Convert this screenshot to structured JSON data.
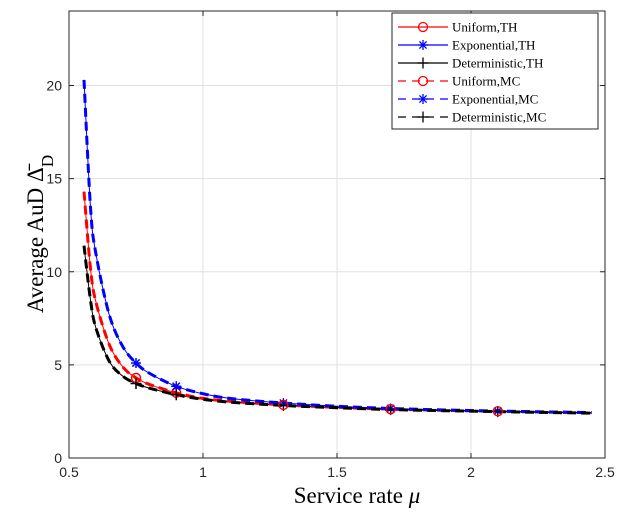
{
  "chart_data": {
    "type": "line",
    "title": "",
    "xlabel": "Service rate μ",
    "ylabel_text": "Average AuD",
    "ylabel_symbol": "Δ̄",
    "ylabel_subscript": "D",
    "xlim": [
      0.5,
      2.5
    ],
    "ylim": [
      0,
      24
    ],
    "xticks": [
      0.5,
      1,
      1.5,
      2,
      2.5
    ],
    "xtick_labels": [
      "0.5",
      "1",
      "1.5",
      "2",
      "2.5"
    ],
    "yticks": [
      0,
      5,
      10,
      15,
      20
    ],
    "ytick_labels": [
      "0",
      "5",
      "10",
      "15",
      "20"
    ],
    "grid": true,
    "legend_position": "top-right",
    "series": [
      {
        "name": "Uniform,TH",
        "color": "#ff0000",
        "linestyle": "solid",
        "marker": "circle",
        "x": [
          0.556,
          0.58,
          0.6,
          0.65,
          0.7,
          0.75,
          0.8,
          0.9,
          1.0,
          1.1,
          1.3,
          1.5,
          1.7,
          1.9,
          2.1,
          2.3,
          2.45
        ],
        "y": [
          14.3,
          10.2,
          8.4,
          6.1,
          4.9,
          4.3,
          3.95,
          3.5,
          3.2,
          3.05,
          2.85,
          2.72,
          2.62,
          2.56,
          2.51,
          2.46,
          2.43
        ],
        "marker_x": [
          0.75,
          0.9,
          1.3,
          1.7,
          2.1
        ]
      },
      {
        "name": "Exponential,TH",
        "color": "#0000ff",
        "linestyle": "solid",
        "marker": "asterisk",
        "x": [
          0.556,
          0.58,
          0.6,
          0.65,
          0.7,
          0.75,
          0.8,
          0.9,
          1.0,
          1.1,
          1.3,
          1.5,
          1.7,
          1.9,
          2.1,
          2.3,
          2.45
        ],
        "y": [
          20.3,
          13.5,
          11.0,
          7.7,
          6.0,
          5.1,
          4.55,
          3.85,
          3.45,
          3.2,
          2.95,
          2.78,
          2.66,
          2.58,
          2.52,
          2.47,
          2.44
        ],
        "marker_x": [
          0.75,
          0.9,
          1.3,
          1.7,
          2.1
        ]
      },
      {
        "name": "Deterministic,TH",
        "color": "#000000",
        "linestyle": "solid",
        "marker": "plus",
        "x": [
          0.556,
          0.58,
          0.6,
          0.65,
          0.7,
          0.75,
          0.8,
          0.9,
          1.0,
          1.1,
          1.3,
          1.5,
          1.7,
          1.9,
          2.1,
          2.3,
          2.45
        ],
        "y": [
          11.4,
          8.5,
          7.0,
          5.2,
          4.4,
          4.0,
          3.75,
          3.4,
          3.15,
          3.0,
          2.82,
          2.7,
          2.6,
          2.54,
          2.49,
          2.44,
          2.41
        ],
        "marker_x": [
          0.75,
          0.9,
          1.3,
          1.7,
          2.1
        ]
      },
      {
        "name": "Uniform,MC",
        "color": "#ff0000",
        "linestyle": "dashed",
        "marker": "circle",
        "x": [
          0.556,
          0.58,
          0.6,
          0.65,
          0.7,
          0.75,
          0.8,
          0.9,
          1.0,
          1.1,
          1.3,
          1.5,
          1.7,
          1.9,
          2.1,
          2.3,
          2.45
        ],
        "y": [
          14.3,
          10.2,
          8.4,
          6.1,
          4.9,
          4.3,
          3.95,
          3.5,
          3.2,
          3.05,
          2.85,
          2.72,
          2.62,
          2.56,
          2.51,
          2.46,
          2.43
        ],
        "marker_x": [
          0.75,
          1.3,
          1.7,
          2.1
        ]
      },
      {
        "name": "Exponential,MC",
        "color": "#0000ff",
        "linestyle": "dashed",
        "marker": "asterisk",
        "x": [
          0.556,
          0.58,
          0.6,
          0.65,
          0.7,
          0.75,
          0.8,
          0.9,
          1.0,
          1.1,
          1.3,
          1.5,
          1.7,
          1.9,
          2.1,
          2.3,
          2.45
        ],
        "y": [
          20.3,
          13.5,
          11.0,
          7.7,
          6.0,
          5.1,
          4.55,
          3.85,
          3.45,
          3.2,
          2.95,
          2.78,
          2.66,
          2.58,
          2.52,
          2.47,
          2.44
        ],
        "marker_x": [
          0.75,
          0.9
        ]
      },
      {
        "name": "Deterministic,MC",
        "color": "#000000",
        "linestyle": "dashed",
        "marker": "plus",
        "x": [
          0.556,
          0.58,
          0.6,
          0.65,
          0.7,
          0.75,
          0.8,
          0.9,
          1.0,
          1.1,
          1.3,
          1.5,
          1.7,
          1.9,
          2.1,
          2.3,
          2.45
        ],
        "y": [
          11.4,
          8.5,
          7.0,
          5.2,
          4.4,
          4.0,
          3.75,
          3.4,
          3.15,
          3.0,
          2.82,
          2.7,
          2.6,
          2.54,
          2.49,
          2.44,
          2.41
        ],
        "marker_x": [
          0.75,
          0.9
        ]
      }
    ]
  }
}
